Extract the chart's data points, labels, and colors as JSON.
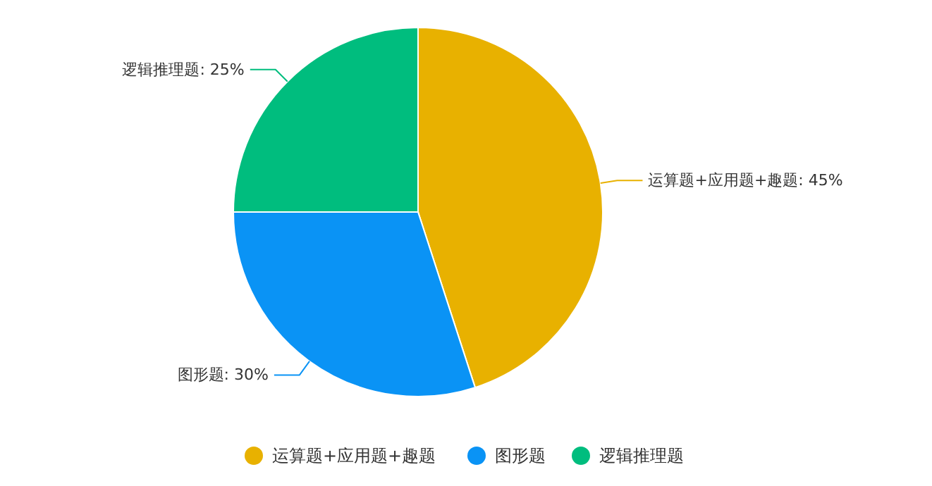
{
  "chart_data": {
    "type": "pie",
    "categories": [
      "运算题+应用题+趣题",
      "图形题",
      "逻辑推理题"
    ],
    "values": [
      45,
      30,
      25
    ],
    "colors": [
      "#e8b100",
      "#0a93f5",
      "#00bd7e"
    ],
    "value_labels": [
      "运算题+应用题+趣题: 45%",
      "图形题: 30%",
      "逻辑推理题: 25%"
    ],
    "legend": "bottom"
  }
}
